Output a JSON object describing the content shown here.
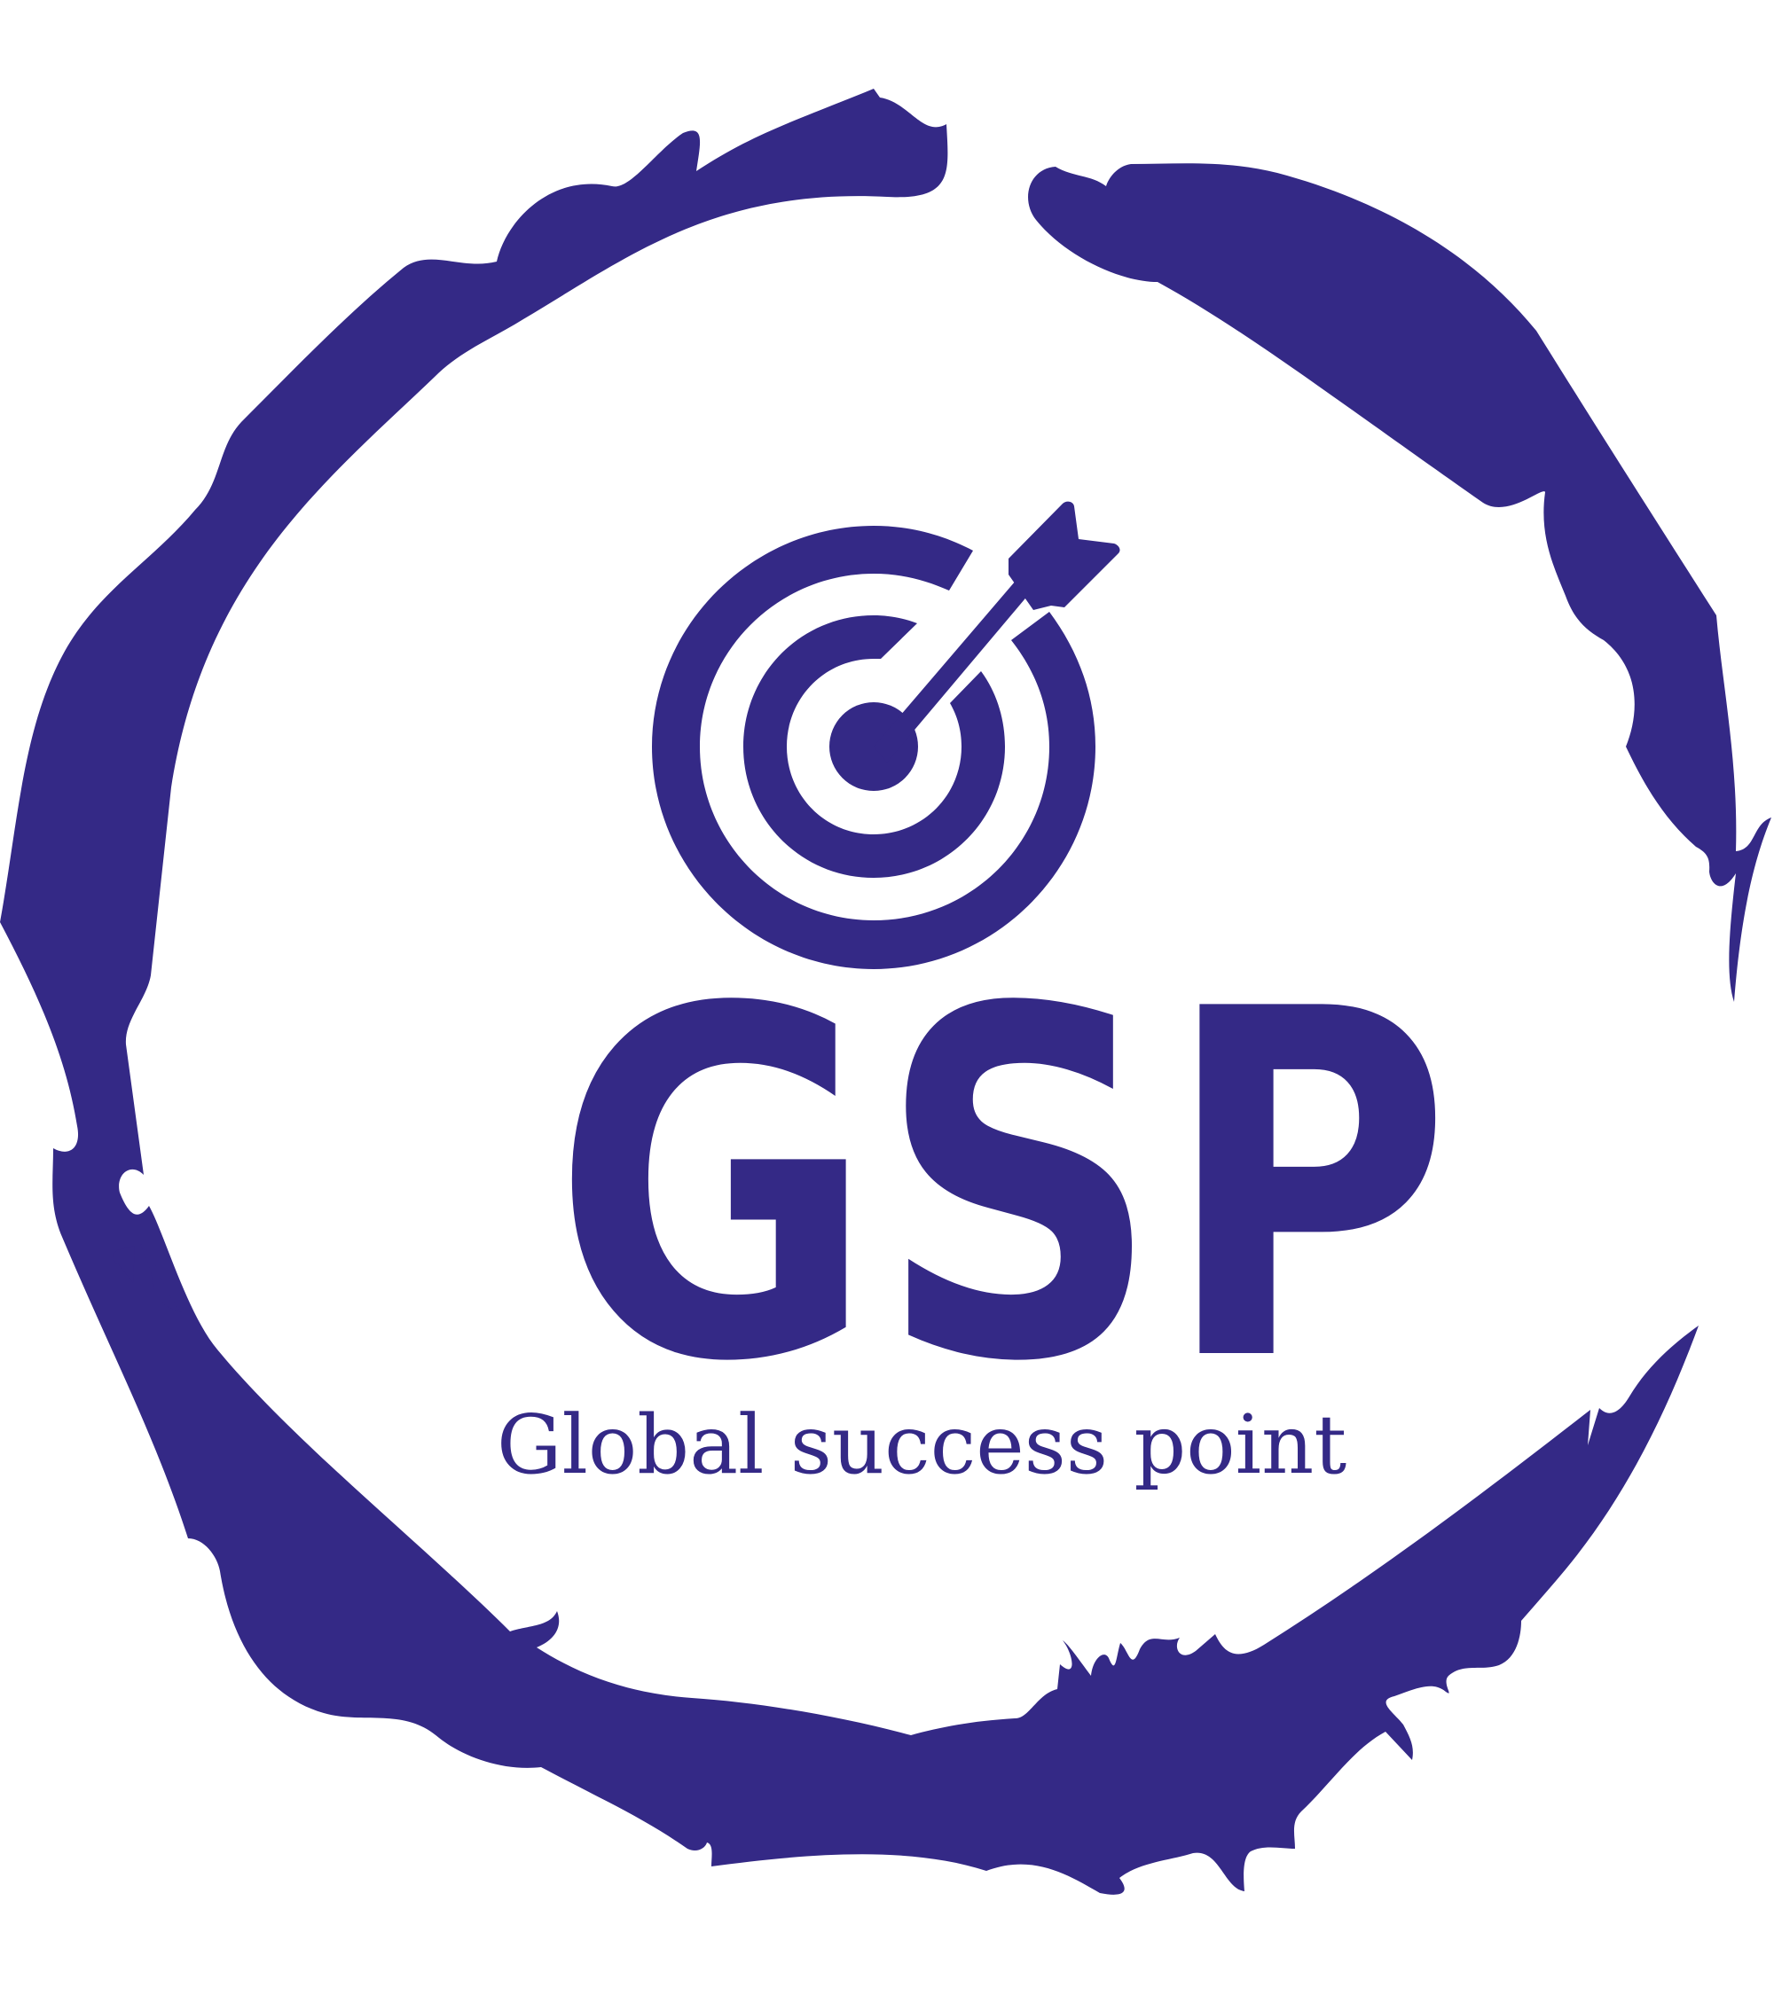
{
  "logo": {
    "mark": "GSP",
    "tagline": "Global success point",
    "icon": "target-with-arrow-icon",
    "frame": "brush-circle"
  },
  "colors": {
    "brand": "#342986",
    "background": "#ffffff"
  }
}
